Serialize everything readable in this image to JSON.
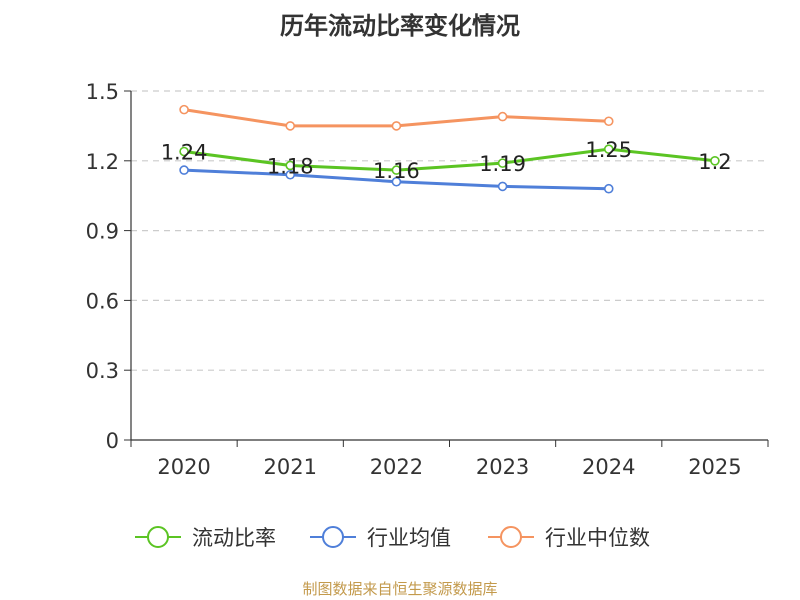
{
  "chart_data": {
    "type": "line",
    "title": "历年流动比率变化情况",
    "xlabel": "",
    "ylabel": "",
    "categories": [
      "2020",
      "2021",
      "2022",
      "2023",
      "2024",
      "2025"
    ],
    "ylim": [
      0,
      1.5
    ],
    "yticks": [
      "0",
      "0.3",
      "0.6",
      "0.9",
      "1.2",
      "1.5"
    ],
    "grid": true,
    "legend_position": "bottom",
    "series": [
      {
        "name": "流动比率",
        "color": "#5bc423",
        "values": [
          1.24,
          1.18,
          1.16,
          1.19,
          1.25,
          1.2
        ],
        "labels": [
          "1.24",
          "1.18",
          "1.16",
          "1.19",
          "1.25",
          "1.2"
        ]
      },
      {
        "name": "行业均值",
        "color": "#4f7fd9",
        "values": [
          1.16,
          1.14,
          1.11,
          1.09,
          1.08,
          null
        ],
        "labels": []
      },
      {
        "name": "行业中位数",
        "color": "#f59460",
        "values": [
          1.42,
          1.35,
          1.35,
          1.39,
          1.37,
          null
        ],
        "labels": []
      }
    ]
  },
  "source_text": "制图数据来自恒生聚源数据库"
}
